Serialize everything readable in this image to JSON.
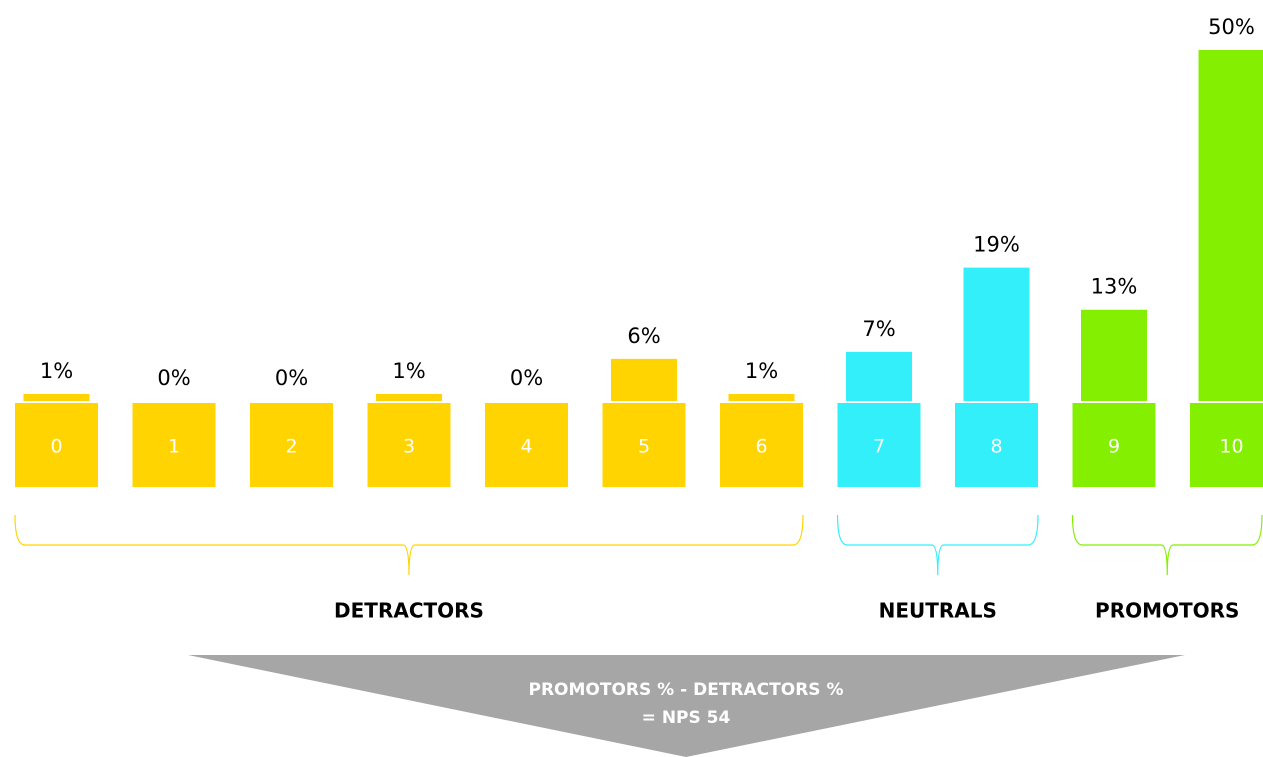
{
  "chart_data": {
    "type": "bar",
    "categories": [
      "0",
      "1",
      "2",
      "3",
      "4",
      "5",
      "6",
      "7",
      "8",
      "9",
      "10"
    ],
    "series": [
      {
        "name": "DETRACTORS",
        "color": "#ffd400",
        "values": [
          1,
          0,
          0,
          1,
          0,
          6,
          1,
          null,
          null,
          null,
          null
        ],
        "value_labels": [
          "1%",
          "0%",
          "0%",
          "1%",
          "0%",
          "6%",
          "1%",
          null,
          null,
          null,
          null
        ]
      },
      {
        "name": "NEUTRALS",
        "color": "#33effa",
        "values": [
          null,
          null,
          null,
          null,
          null,
          null,
          null,
          7,
          19,
          null,
          null
        ],
        "value_labels": [
          null,
          null,
          null,
          null,
          null,
          null,
          null,
          "7%",
          "19%",
          null,
          null
        ]
      },
      {
        "name": "PROMOTORS",
        "color": "#84ef00",
        "values": [
          null,
          null,
          null,
          null,
          null,
          null,
          null,
          null,
          null,
          13,
          50
        ],
        "value_labels": [
          null,
          null,
          null,
          null,
          null,
          null,
          null,
          null,
          null,
          "13%",
          "50%"
        ]
      }
    ],
    "annotations": [
      "PROMOTORS % - DETRACTORS %",
      "= NPS 54"
    ]
  }
}
